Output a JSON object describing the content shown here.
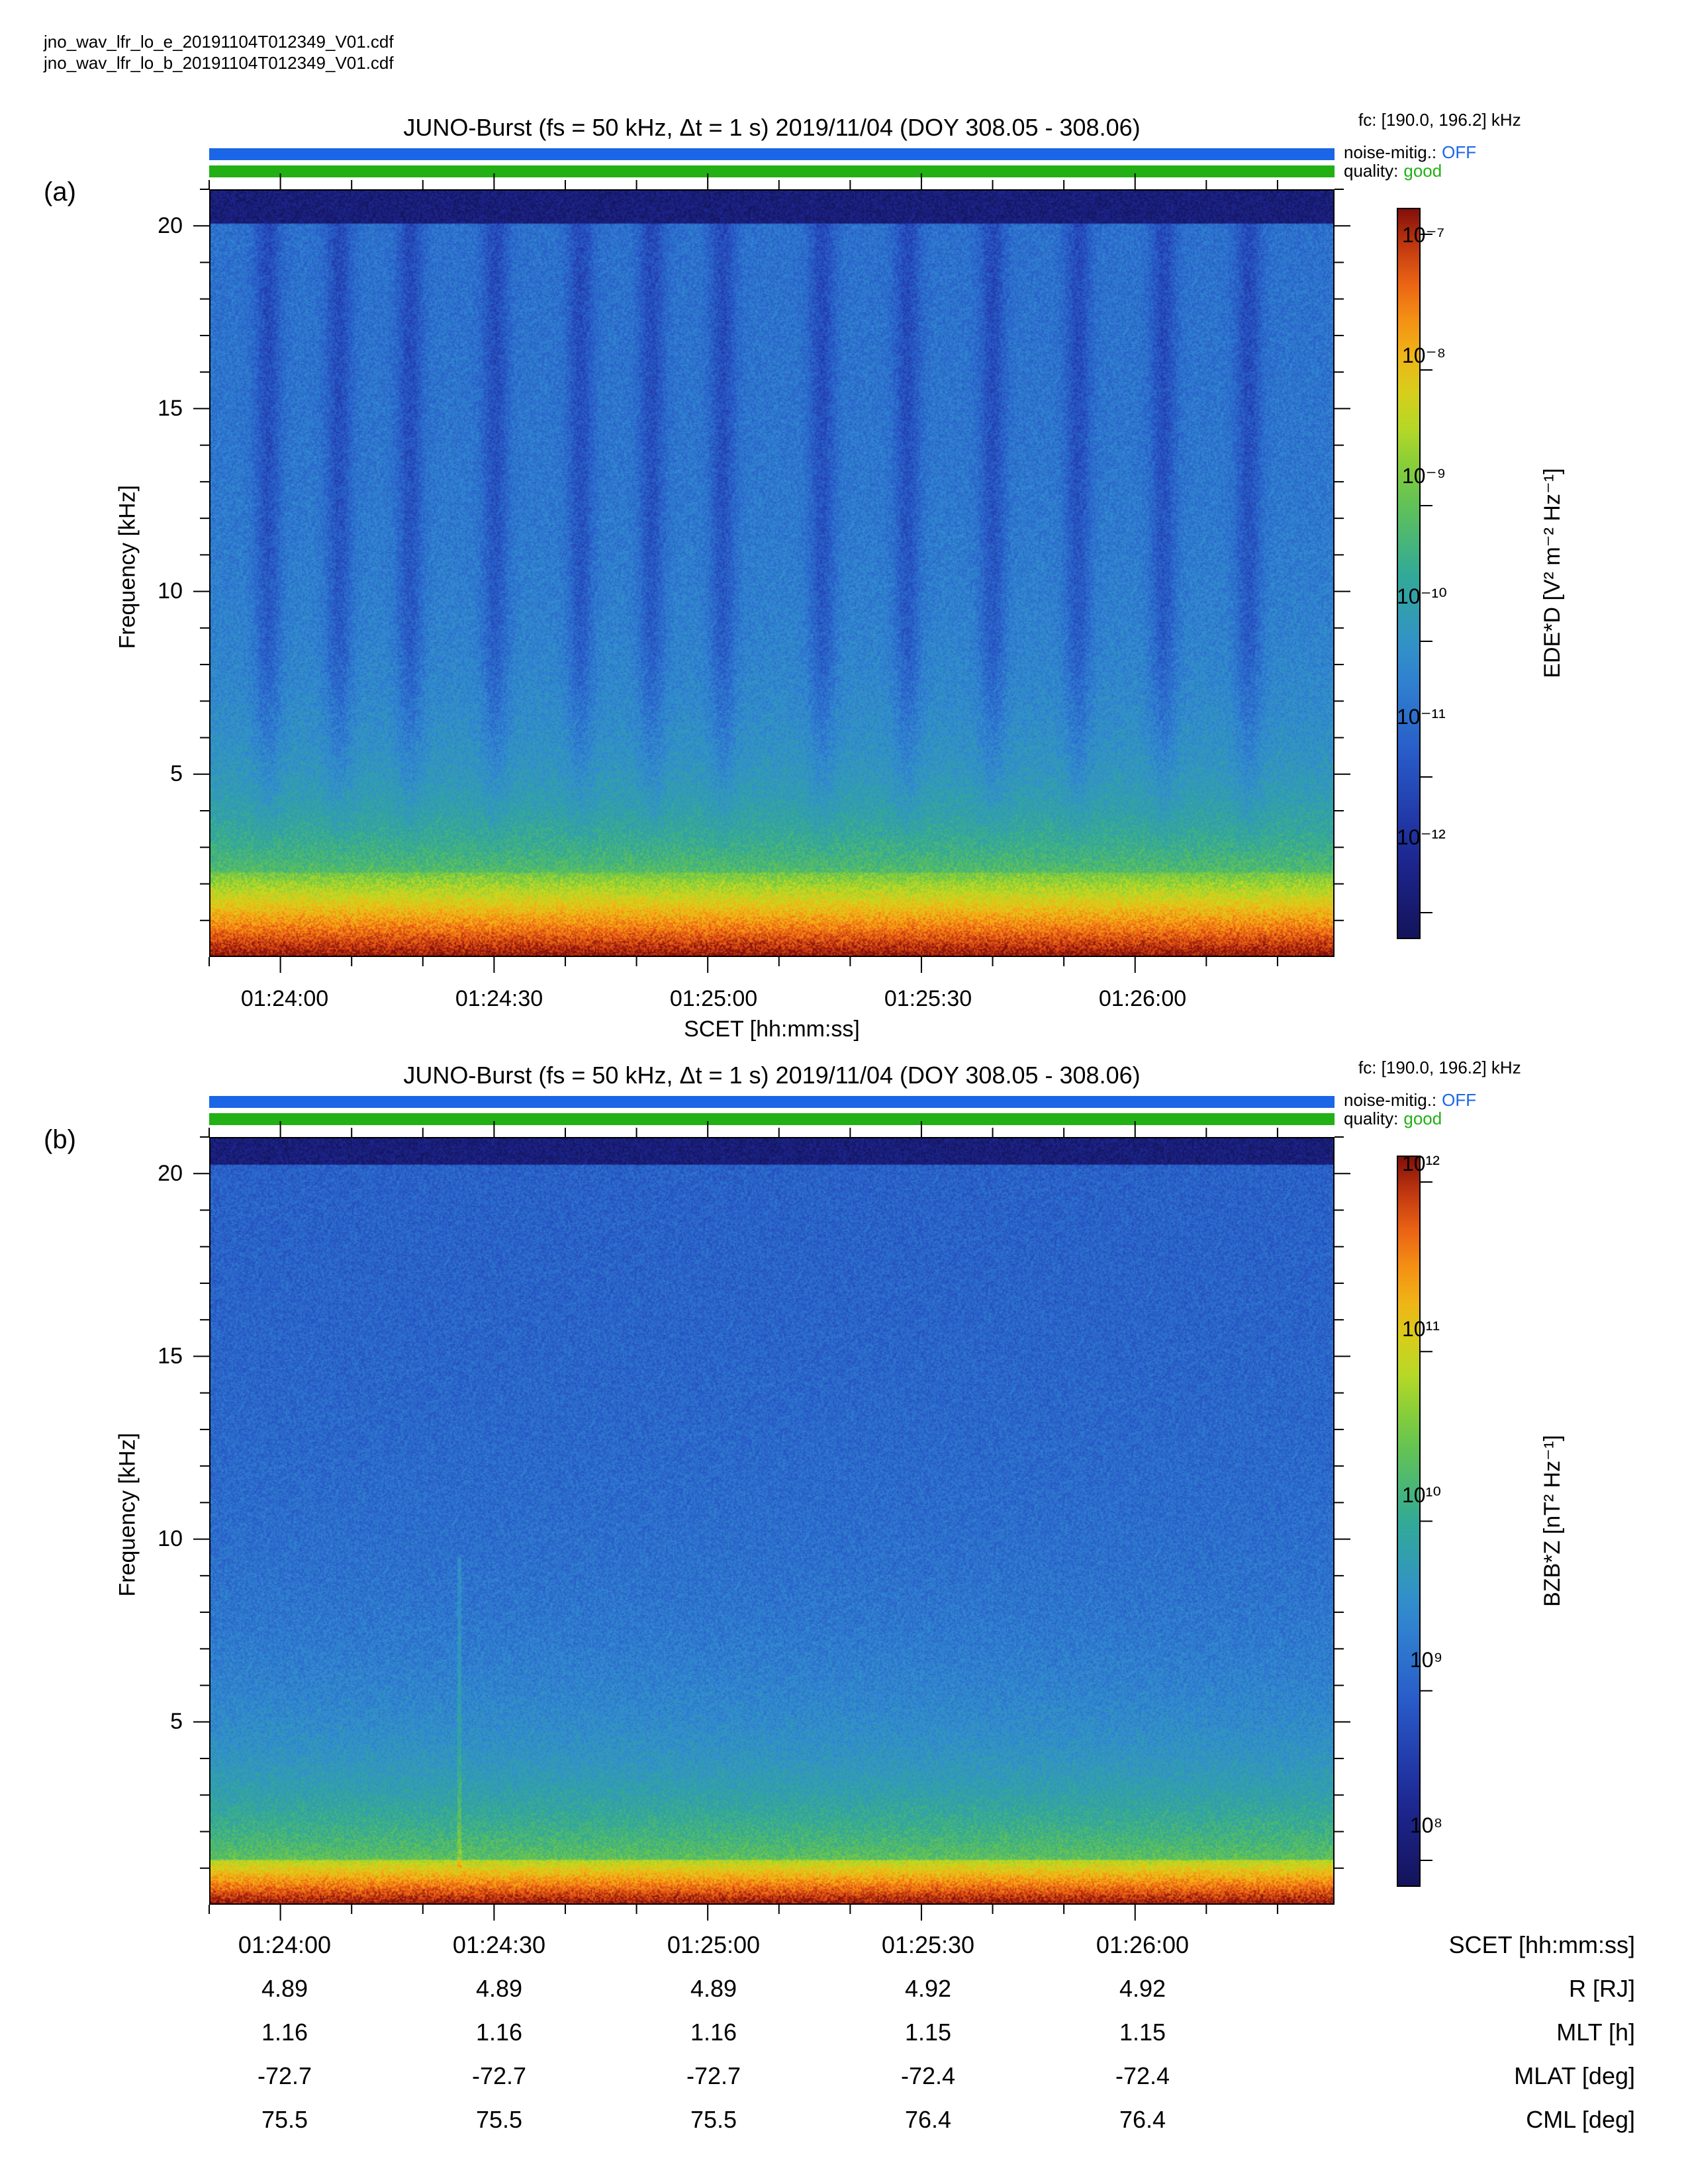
{
  "files": [
    "jno_wav_lfr_lo_e_20191104T012349_V01.cdf",
    "jno_wav_lfr_lo_b_20191104T012349_V01.cdf"
  ],
  "panels": [
    {
      "label": "(a)",
      "title": "JUNO-Burst (fs = 50 kHz, Δt = 1 s)  2019/11/04 (DOY 308.05 - 308.06)",
      "fc": "fc: [190.0, 196.2] kHz",
      "noise_label": "noise-mitig.:",
      "noise_value": "OFF",
      "quality_label": "quality:",
      "quality_value": "good",
      "ylabel": "Frequency [kHz]",
      "xlabel": "SCET [hh:mm:ss]",
      "cbar_label": "EDE*D [V² m⁻² Hz⁻¹]",
      "cbar_ticks": [
        "10⁻⁷",
        "10⁻⁸",
        "10⁻⁹",
        "10⁻¹⁰",
        "10⁻¹¹",
        "10⁻¹²"
      ]
    },
    {
      "label": "(b)",
      "title": "JUNO-Burst (fs = 50 kHz, Δt = 1 s)  2019/11/04 (DOY 308.05 - 308.06)",
      "fc": "fc: [190.0, 196.2] kHz",
      "noise_label": "noise-mitig.:",
      "noise_value": "OFF",
      "quality_label": "quality:",
      "quality_value": "good",
      "ylabel": "Frequency [kHz]",
      "xlabel": "",
      "cbar_label": "BZB*Z [nT² Hz⁻¹]",
      "cbar_ticks": [
        "10¹²",
        "10¹¹",
        "10¹⁰",
        "10⁹",
        "10⁸"
      ]
    }
  ],
  "colors": {
    "noise_bar": "#1a66e6",
    "quality_bar": "#22b014",
    "off_text": "#1a66e6",
    "good_text": "#22b014"
  },
  "chart_data": [
    {
      "type": "heatmap",
      "x_ticks": [
        "01:24:00",
        "01:24:30",
        "01:25:00",
        "01:25:30",
        "01:26:00"
      ],
      "x_range_seconds": [
        0,
        158
      ],
      "y_ticks": [
        "5",
        "10",
        "15",
        "20"
      ],
      "ylim": [
        0,
        21
      ],
      "ylabel": "Frequency [kHz]",
      "xlabel": "SCET [hh:mm:ss]",
      "colorbar": {
        "log": true,
        "range": [
          1.5e-13,
          1.5e-07
        ]
      },
      "grid": false
    },
    {
      "type": "heatmap",
      "x_ticks": [
        "01:24:00",
        "01:24:30",
        "01:25:00",
        "01:25:30",
        "01:26:00"
      ],
      "x_range_seconds": [
        0,
        158
      ],
      "y_ticks": [
        "5",
        "10",
        "15",
        "20"
      ],
      "ylim": [
        0,
        21
      ],
      "ylabel": "Frequency [kHz]",
      "colorbar": {
        "log": true,
        "range": [
          50000000.0,
          1200000000000.0
        ]
      },
      "grid": false
    }
  ],
  "ephemeris": {
    "rows": [
      {
        "label": "SCET [hh:mm:ss]",
        "values": [
          "01:24:00",
          "01:24:30",
          "01:25:00",
          "01:25:30",
          "01:26:00"
        ]
      },
      {
        "label": "R [RJ]",
        "values": [
          "4.89",
          "4.89",
          "4.89",
          "4.92",
          "4.92"
        ]
      },
      {
        "label": "MLT [h]",
        "values": [
          "1.16",
          "1.16",
          "1.16",
          "1.15",
          "1.15"
        ]
      },
      {
        "label": "MLAT [deg]",
        "values": [
          "-72.7",
          "-72.7",
          "-72.7",
          "-72.4",
          "-72.4"
        ]
      },
      {
        "label": "CML [deg]",
        "values": [
          "75.5",
          "75.5",
          "75.5",
          "76.4",
          "76.4"
        ]
      }
    ]
  }
}
